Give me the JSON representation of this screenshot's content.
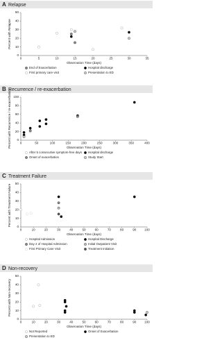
{
  "chart_data": [
    {
      "type": "scatter",
      "label": "A",
      "title": "Relapse",
      "xlabel": "Observation Time (days)",
      "ylabel": "Percent with Relapse",
      "xlim": [
        0,
        35
      ],
      "xticks": [
        0,
        5,
        10,
        15,
        20,
        25,
        30,
        35
      ],
      "ylim": [
        0,
        50
      ],
      "yticks": [
        0,
        10,
        20,
        30,
        40,
        50
      ],
      "series": [
        {
          "name": "End of Exacerbation",
          "color": "#888888",
          "hollow": false,
          "x": [
            14,
            15
          ],
          "y": [
            25,
            15
          ]
        },
        {
          "name": "Hospital discharge",
          "color": "#000000",
          "hollow": false,
          "x": [
            14,
            30
          ],
          "y": [
            22,
            27
          ]
        },
        {
          "name": "First primary care visit",
          "color": "#999999",
          "hollow": true,
          "x": [
            5,
            10,
            14,
            20,
            28
          ],
          "y": [
            10,
            26,
            30,
            7,
            32
          ]
        },
        {
          "name": "Presentation to ED",
          "color": "#cccccc",
          "hollow": false,
          "x": [
            15,
            30
          ],
          "y": [
            28,
            20
          ]
        }
      ]
    },
    {
      "type": "scatter",
      "label": "B",
      "title": "Recurrence / re-exacerbation",
      "xlabel": "Observation Time (days)",
      "ylabel": "Percent with Recurrence / re-exacerbation",
      "xlim": [
        0,
        400
      ],
      "xticks": [
        0,
        50,
        100,
        150,
        200,
        250,
        300,
        350,
        400
      ],
      "ylim": [
        0,
        100
      ],
      "yticks": [
        0,
        20,
        40,
        60,
        80,
        100
      ],
      "series": [
        {
          "name": "After 5 consecutive symptom-free days",
          "color": "#999999",
          "hollow": true,
          "x": [
            30
          ],
          "y": [
            20
          ]
        },
        {
          "name": "Hospital discharge",
          "color": "#000000",
          "hollow": false,
          "x": [
            10,
            10,
            30,
            60,
            60,
            80,
            80,
            180,
            360
          ],
          "y": [
            18,
            12,
            28,
            32,
            45,
            38,
            48,
            57,
            88
          ]
        },
        {
          "name": "Onset of exacerbation",
          "color": "#888888",
          "hollow": false,
          "x": [
            30,
            180
          ],
          "y": [
            22,
            55
          ]
        },
        {
          "name": "Study Start",
          "color": "#cccccc",
          "hollow": false,
          "x": [
            10
          ],
          "y": [
            8
          ]
        }
      ]
    },
    {
      "type": "scatter",
      "label": "C",
      "title": "Treatment Failure",
      "xlabel": "Observation Time (days)",
      "ylabel": "Percent with Treatment Failure",
      "xlim": [
        0,
        100
      ],
      "xticks": [
        0,
        10,
        20,
        30,
        40,
        50,
        60,
        70,
        80,
        90,
        100
      ],
      "ylim": [
        0,
        50
      ],
      "yticks": [
        0,
        10,
        20,
        30,
        40,
        50
      ],
      "series": [
        {
          "name": "Hospital Admission",
          "color": "#999999",
          "hollow": true,
          "x": [
            0
          ],
          "y": [
            20
          ]
        },
        {
          "name": "Hospital Discharge",
          "color": "#000000",
          "hollow": false,
          "x": [
            30,
            32,
            90
          ],
          "y": [
            35,
            12,
            35
          ]
        },
        {
          "name": "Day 2 of Hospital Admission",
          "color": "#888888",
          "hollow": false,
          "x": [
            30
          ],
          "y": [
            28
          ]
        },
        {
          "name": "Initial Outpatient Visit",
          "color": "#bbbbbb",
          "hollow": false,
          "x": [
            30
          ],
          "y": [
            22
          ]
        },
        {
          "name": "First Primary Care Visit",
          "color": "#cccccc",
          "hollow": true,
          "x": [
            5,
            8
          ],
          "y": [
            15,
            16
          ]
        },
        {
          "name": "Treatment Initiation",
          "color": "#555555",
          "hollow": false,
          "x": [
            30
          ],
          "y": [
            15
          ]
        }
      ]
    },
    {
      "type": "scatter",
      "label": "D",
      "title": "Non-recovery",
      "xlabel": "Observation Time (days)",
      "ylabel": "Percent with Non-recovery",
      "xlim": [
        0,
        100
      ],
      "xticks": [
        0,
        10,
        20,
        30,
        40,
        50,
        60,
        70,
        80,
        90,
        100
      ],
      "ylim": [
        0,
        50
      ],
      "yticks": [
        0,
        10,
        20,
        30,
        40,
        50
      ],
      "series": [
        {
          "name": "Not Reported",
          "color": "#999999",
          "hollow": true,
          "x": [
            10,
            14,
            15
          ],
          "y": [
            15,
            40,
            16
          ]
        },
        {
          "name": "Onset of Exacerbation",
          "color": "#000000",
          "hollow": false,
          "x": [
            35,
            35,
            36,
            35,
            35,
            90,
            90,
            99
          ],
          "y": [
            22,
            20,
            15,
            10,
            8,
            10,
            8,
            5
          ]
        },
        {
          "name": "Presentation to ED",
          "color": "#cccccc",
          "hollow": false,
          "x": [
            100
          ],
          "y": [
            8
          ]
        }
      ]
    }
  ]
}
